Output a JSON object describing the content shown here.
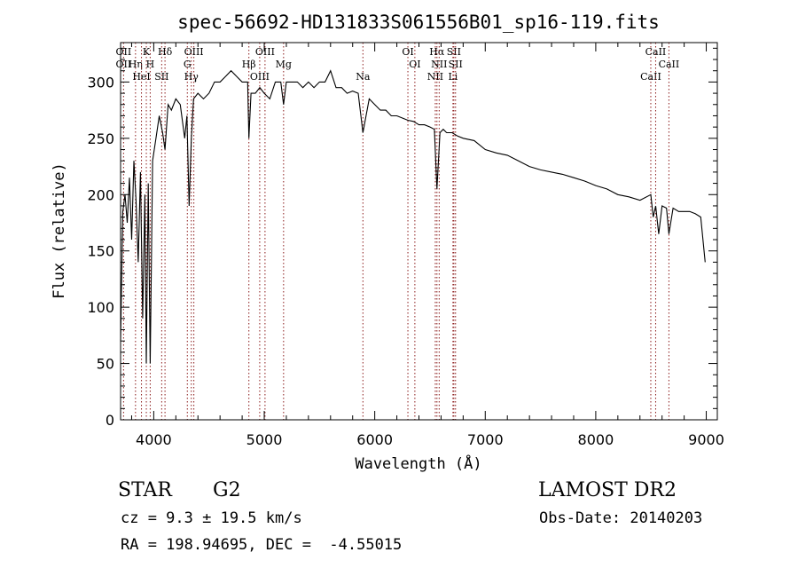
{
  "chart_data": {
    "type": "line",
    "title": "spec-56692-HD131833S061556B01_sp16-119.fits",
    "xlabel": "Wavelength (Å)",
    "ylabel": "Flux (relative)",
    "xlim": [
      3700,
      9100
    ],
    "ylim": [
      0,
      335
    ],
    "xticks": [
      4000,
      5000,
      6000,
      7000,
      8000,
      9000
    ],
    "yticks": [
      0,
      50,
      100,
      150,
      200,
      250,
      300
    ],
    "grid": false,
    "line_color": "#000000",
    "marker_color": "#8b1a1a",
    "series": [
      {
        "x": [
          3700,
          3720,
          3740,
          3760,
          3780,
          3800,
          3820,
          3840,
          3860,
          3880,
          3900,
          3920,
          3933,
          3950,
          3968,
          3990,
          4020,
          4050,
          4080,
          4102,
          4130,
          4160,
          4200,
          4240,
          4280,
          4300,
          4320,
          4340,
          4360,
          4400,
          4450,
          4500,
          4550,
          4600,
          4650,
          4700,
          4750,
          4800,
          4850,
          4861,
          4880,
          4920,
          4960,
          5000,
          5050,
          5100,
          5150,
          5175,
          5200,
          5250,
          5300,
          5350,
          5400,
          5450,
          5500,
          5550,
          5600,
          5650,
          5700,
          5750,
          5800,
          5850,
          5893,
          5950,
          6000,
          6050,
          6100,
          6150,
          6200,
          6250,
          6300,
          6350,
          6400,
          6450,
          6500,
          6540,
          6563,
          6590,
          6620,
          6650,
          6700,
          6750,
          6800,
          6900,
          7000,
          7100,
          7200,
          7300,
          7400,
          7500,
          7600,
          7700,
          7800,
          7900,
          8000,
          8100,
          8200,
          8300,
          8400,
          8498,
          8520,
          8542,
          8570,
          8600,
          8640,
          8662,
          8700,
          8750,
          8800,
          8850,
          8900,
          8950,
          8990
        ],
        "y": [
          70,
          185,
          200,
          175,
          215,
          160,
          230,
          195,
          140,
          220,
          90,
          200,
          50,
          210,
          50,
          230,
          250,
          270,
          255,
          240,
          280,
          275,
          285,
          280,
          250,
          270,
          190,
          250,
          285,
          290,
          285,
          290,
          300,
          300,
          305,
          310,
          305,
          300,
          300,
          250,
          290,
          290,
          295,
          290,
          285,
          300,
          300,
          280,
          300,
          300,
          300,
          295,
          300,
          295,
          300,
          300,
          310,
          295,
          295,
          290,
          292,
          290,
          255,
          285,
          280,
          275,
          275,
          270,
          270,
          268,
          266,
          265,
          262,
          262,
          260,
          258,
          205,
          255,
          258,
          255,
          255,
          252,
          250,
          248,
          240,
          237,
          235,
          230,
          225,
          222,
          220,
          218,
          215,
          212,
          208,
          205,
          200,
          198,
          195,
          200,
          180,
          190,
          165,
          190,
          188,
          165,
          188,
          185,
          185,
          185,
          183,
          180,
          140
        ]
      }
    ],
    "lines": [
      {
        "x": 3727,
        "labels": [
          "OII",
          "OII"
        ]
      },
      {
        "x": 3835,
        "labels": [
          "Hη"
        ]
      },
      {
        "x": 3889,
        "labels": [
          "HeI"
        ]
      },
      {
        "x": 3933,
        "labels": [
          "K"
        ]
      },
      {
        "x": 3968,
        "labels": [
          "H"
        ]
      },
      {
        "x": 4072,
        "labels": [
          "SII"
        ]
      },
      {
        "x": 4102,
        "labels": [
          "Hδ"
        ]
      },
      {
        "x": 4304,
        "labels": [
          "G"
        ]
      },
      {
        "x": 4340,
        "labels": [
          "Hγ"
        ]
      },
      {
        "x": 4363,
        "labels": [
          "OIII"
        ]
      },
      {
        "x": 4861,
        "labels": [
          "Hβ"
        ]
      },
      {
        "x": 4959,
        "labels": [
          "OIII"
        ]
      },
      {
        "x": 5007,
        "labels": [
          "OIII"
        ]
      },
      {
        "x": 5175,
        "labels": [
          "Mg"
        ]
      },
      {
        "x": 5893,
        "labels": [
          "Na"
        ]
      },
      {
        "x": 6300,
        "labels": [
          "OI"
        ]
      },
      {
        "x": 6363,
        "labels": [
          "OI"
        ]
      },
      {
        "x": 6548,
        "labels": [
          "NII"
        ]
      },
      {
        "x": 6563,
        "labels": [
          "Hα"
        ]
      },
      {
        "x": 6583,
        "labels": [
          "NII"
        ]
      },
      {
        "x": 6708,
        "labels": [
          "Li"
        ]
      },
      {
        "x": 6716,
        "labels": [
          "SII"
        ]
      },
      {
        "x": 6731,
        "labels": [
          "SII"
        ]
      },
      {
        "x": 8498,
        "labels": [
          "CaII"
        ]
      },
      {
        "x": 8542,
        "labels": [
          "CaII"
        ]
      },
      {
        "x": 8662,
        "labels": [
          "CaII"
        ]
      }
    ]
  },
  "info": {
    "object_class": "STAR",
    "subclass": "G2",
    "survey": "LAMOST DR2",
    "redshift_text": "cz = 9.3 ± 19.5 km/s",
    "obs_date_text": "Obs-Date: 20140203",
    "coords_text": "RA = 198.94695, DEC =  -4.55015"
  }
}
